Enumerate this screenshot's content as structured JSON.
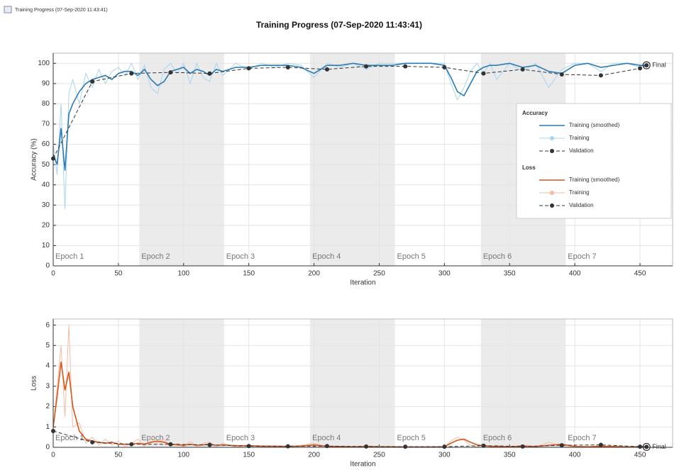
{
  "window_title": "Training Progress (07-Sep-2020 11:43:41)",
  "title": "Training Progress (07-Sep-2020 11:43:41)",
  "legend": "east",
  "chart_data": [
    {
      "type": "line",
      "ylabel": "Accuracy (%)",
      "xlabel": "Iteration",
      "legend_title": "Accuracy",
      "annotation": "Final",
      "xlim": [
        0,
        475
      ],
      "xticks": [
        0,
        50,
        100,
        150,
        200,
        250,
        300,
        350,
        400,
        450
      ],
      "ylim": [
        0,
        105
      ],
      "yticks": [
        0,
        10,
        20,
        30,
        40,
        50,
        60,
        70,
        80,
        90,
        100
      ],
      "grid": true,
      "epochs": [
        {
          "label": "Epoch 1",
          "start": 0,
          "end": 66,
          "shaded": false
        },
        {
          "label": "Epoch 2",
          "start": 66,
          "end": 131,
          "shaded": true
        },
        {
          "label": "Epoch 3",
          "start": 131,
          "end": 197,
          "shaded": false
        },
        {
          "label": "Epoch 4",
          "start": 197,
          "end": 262,
          "shaded": true
        },
        {
          "label": "Epoch 5",
          "start": 262,
          "end": 328,
          "shaded": false
        },
        {
          "label": "Epoch 6",
          "start": 328,
          "end": 393,
          "shaded": true
        },
        {
          "label": "Epoch 7",
          "start": 393,
          "end": 455,
          "shaded": false
        }
      ],
      "series": [
        {
          "name": "Training",
          "color": "#a9d5ee",
          "style": "raw",
          "x": [
            0,
            3,
            6,
            9,
            12,
            15,
            20,
            25,
            30,
            35,
            40,
            45,
            50,
            55,
            60,
            65,
            70,
            75,
            80,
            85,
            90,
            95,
            100,
            105,
            110,
            115,
            120,
            125,
            130,
            140,
            150,
            160,
            170,
            180,
            190,
            200,
            210,
            220,
            230,
            240,
            250,
            260,
            270,
            280,
            290,
            300,
            305,
            310,
            315,
            320,
            325,
            330,
            335,
            340,
            350,
            360,
            370,
            380,
            390,
            400,
            410,
            420,
            430,
            440,
            450,
            455
          ],
          "values": [
            60,
            45,
            80,
            28,
            85,
            92,
            80,
            95,
            88,
            97,
            90,
            96,
            98,
            94,
            100,
            92,
            99,
            88,
            85,
            97,
            100,
            95,
            100,
            90,
            100,
            93,
            91,
            100,
            94,
            100,
            97,
            100,
            98,
            100,
            99,
            93,
            100,
            98,
            100,
            97,
            100,
            100,
            100,
            100,
            100,
            100,
            90,
            82,
            88,
            96,
            100,
            95,
            100,
            92,
            100,
            96,
            100,
            88,
            97,
            100,
            100,
            96,
            100,
            100,
            98,
            100
          ]
        },
        {
          "name": "Training (smoothed)",
          "color": "#2b7bb4",
          "style": "smooth",
          "x": [
            0,
            3,
            6,
            9,
            12,
            15,
            20,
            25,
            30,
            35,
            40,
            45,
            50,
            55,
            60,
            65,
            70,
            75,
            80,
            85,
            90,
            95,
            100,
            105,
            110,
            115,
            120,
            125,
            130,
            140,
            150,
            160,
            170,
            180,
            190,
            200,
            210,
            220,
            230,
            240,
            250,
            260,
            270,
            280,
            290,
            300,
            305,
            310,
            315,
            320,
            325,
            330,
            335,
            340,
            350,
            360,
            370,
            380,
            390,
            400,
            410,
            420,
            430,
            440,
            450,
            455
          ],
          "values": [
            55,
            50,
            68,
            47,
            75,
            80,
            86,
            90,
            92,
            93,
            94,
            92,
            95,
            96,
            96,
            94,
            97,
            92,
            89,
            91,
            96,
            97,
            98,
            95,
            97,
            96,
            94,
            97,
            96,
            98,
            98,
            99,
            99,
            99,
            98,
            95,
            99,
            99,
            100,
            99,
            99,
            99,
            100,
            100,
            100,
            99,
            93,
            86,
            84,
            90,
            96,
            98,
            99,
            99,
            100,
            98,
            99,
            96,
            95,
            99,
            100,
            98,
            99,
            100,
            99,
            99
          ]
        },
        {
          "name": "Validation",
          "color": "#333333",
          "style": "validation",
          "x": [
            0,
            30,
            60,
            90,
            120,
            150,
            180,
            210,
            240,
            270,
            300,
            330,
            360,
            390,
            420,
            450,
            455
          ],
          "values": [
            53,
            91,
            95,
            95.5,
            95,
            97.5,
            98,
            97,
            98.5,
            98.5,
            98,
            95,
            97,
            94.5,
            94,
            97.5,
            99
          ]
        }
      ]
    },
    {
      "type": "line",
      "ylabel": "Loss",
      "xlabel": "Iteration",
      "legend_title": "Loss",
      "annotation": "Final",
      "xlim": [
        0,
        475
      ],
      "xticks": [
        0,
        50,
        100,
        150,
        200,
        250,
        300,
        350,
        400,
        450
      ],
      "ylim": [
        0,
        6.3
      ],
      "yticks": [
        0,
        1,
        2,
        3,
        4,
        5,
        6
      ],
      "grid": true,
      "epochs": [
        {
          "label": "Epoch 1",
          "start": 0,
          "end": 66,
          "shaded": false
        },
        {
          "label": "Epoch 2",
          "start": 66,
          "end": 131,
          "shaded": true
        },
        {
          "label": "Epoch 3",
          "start": 131,
          "end": 197,
          "shaded": false
        },
        {
          "label": "Epoch 4",
          "start": 197,
          "end": 262,
          "shaded": true
        },
        {
          "label": "Epoch 5",
          "start": 262,
          "end": 328,
          "shaded": false
        },
        {
          "label": "Epoch 6",
          "start": 328,
          "end": 393,
          "shaded": true
        },
        {
          "label": "Epoch 7",
          "start": 393,
          "end": 455,
          "shaded": false
        }
      ],
      "series": [
        {
          "name": "Training",
          "color": "#f6bba3",
          "style": "raw",
          "x": [
            0,
            3,
            6,
            9,
            12,
            15,
            20,
            25,
            30,
            35,
            40,
            45,
            50,
            55,
            60,
            65,
            70,
            75,
            80,
            85,
            90,
            95,
            100,
            105,
            110,
            115,
            120,
            125,
            130,
            140,
            150,
            160,
            170,
            180,
            190,
            200,
            210,
            220,
            230,
            240,
            250,
            260,
            270,
            280,
            290,
            300,
            305,
            310,
            315,
            320,
            325,
            330,
            335,
            340,
            350,
            360,
            370,
            380,
            390,
            400,
            410,
            420,
            430,
            440,
            450,
            455
          ],
          "values": [
            0.8,
            3,
            5,
            1.5,
            6,
            1,
            1.2,
            0.2,
            0.5,
            0.1,
            0.4,
            0.1,
            0.3,
            0.05,
            0.2,
            0.4,
            0.05,
            0.5,
            0.2,
            0.4,
            0.05,
            0.2,
            0.02,
            0.3,
            0.02,
            0.2,
            0.25,
            0.02,
            0.2,
            0.01,
            0.1,
            0.01,
            0.08,
            0.01,
            0.1,
            0.2,
            0.01,
            0.05,
            0.01,
            0.08,
            0.01,
            0.01,
            0.01,
            0.01,
            0.01,
            0.01,
            0.3,
            0.5,
            0.35,
            0.1,
            0.01,
            0.15,
            0.01,
            0.1,
            0.01,
            0.12,
            0.01,
            0.25,
            0.05,
            0.01,
            0.01,
            0.1,
            0.01,
            0.01,
            0.05,
            0.01
          ]
        },
        {
          "name": "Training (smoothed)",
          "color": "#d6561c",
          "style": "smooth",
          "x": [
            0,
            3,
            6,
            9,
            12,
            15,
            20,
            25,
            30,
            35,
            40,
            45,
            50,
            55,
            60,
            65,
            70,
            75,
            80,
            85,
            90,
            95,
            100,
            105,
            110,
            115,
            120,
            125,
            130,
            140,
            150,
            160,
            170,
            180,
            190,
            200,
            210,
            220,
            230,
            240,
            250,
            260,
            270,
            280,
            290,
            300,
            305,
            310,
            315,
            320,
            325,
            330,
            335,
            340,
            350,
            360,
            370,
            380,
            390,
            400,
            410,
            420,
            430,
            440,
            450,
            455
          ],
          "values": [
            1.0,
            2.5,
            4.2,
            2.8,
            3.7,
            2.0,
            0.8,
            0.4,
            0.3,
            0.25,
            0.2,
            0.25,
            0.15,
            0.15,
            0.15,
            0.2,
            0.15,
            0.25,
            0.3,
            0.25,
            0.15,
            0.12,
            0.1,
            0.15,
            0.1,
            0.12,
            0.15,
            0.1,
            0.12,
            0.08,
            0.08,
            0.06,
            0.05,
            0.05,
            0.06,
            0.12,
            0.05,
            0.04,
            0.03,
            0.04,
            0.03,
            0.03,
            0.02,
            0.02,
            0.02,
            0.03,
            0.2,
            0.35,
            0.4,
            0.25,
            0.12,
            0.08,
            0.05,
            0.04,
            0.03,
            0.06,
            0.04,
            0.1,
            0.15,
            0.04,
            0.03,
            0.05,
            0.04,
            0.02,
            0.03,
            0.03
          ]
        },
        {
          "name": "Validation",
          "color": "#333333",
          "style": "validation",
          "x": [
            0,
            30,
            60,
            90,
            120,
            150,
            180,
            210,
            240,
            270,
            300,
            330,
            360,
            390,
            420,
            450,
            455
          ],
          "values": [
            0.8,
            0.25,
            0.15,
            0.15,
            0.12,
            0.06,
            0.05,
            0.06,
            0.04,
            0.03,
            0.03,
            0.08,
            0.04,
            0.1,
            0.12,
            0.03,
            0.02
          ]
        }
      ]
    }
  ]
}
